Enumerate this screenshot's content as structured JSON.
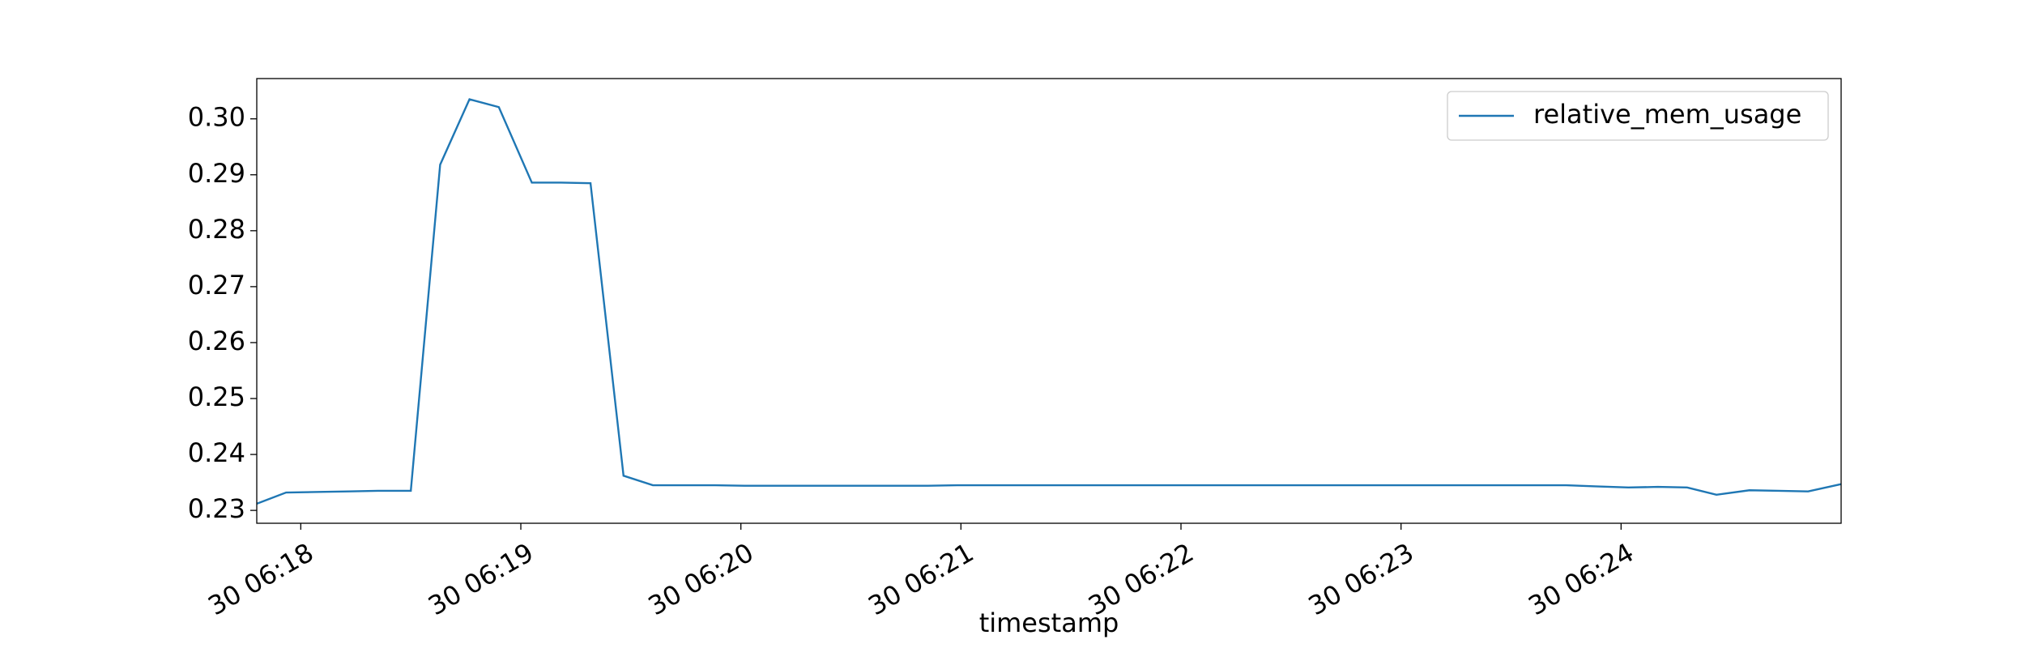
{
  "chart_data": {
    "type": "line",
    "x_label": "timestamp",
    "x": [
      "30 06:17:48",
      "30 06:17:56",
      "30 06:18:05",
      "30 06:18:13",
      "30 06:18:21",
      "30 06:18:30",
      "30 06:18:38",
      "30 06:18:46",
      "30 06:18:54",
      "30 06:19:03",
      "30 06:19:11",
      "30 06:19:19",
      "30 06:19:28",
      "30 06:19:36",
      "30 06:19:44",
      "30 06:19:53",
      "30 06:20:01",
      "30 06:20:09",
      "30 06:20:17",
      "30 06:20:26",
      "30 06:20:34",
      "30 06:20:42",
      "30 06:20:51",
      "30 06:20:59",
      "30 06:21:07",
      "30 06:21:16",
      "30 06:21:24",
      "30 06:21:32",
      "30 06:21:40",
      "30 06:21:49",
      "30 06:21:57",
      "30 06:22:05",
      "30 06:22:14",
      "30 06:22:22",
      "30 06:22:30",
      "30 06:22:39",
      "30 06:22:47",
      "30 06:22:55",
      "30 06:23:03",
      "30 06:23:12",
      "30 06:23:20",
      "30 06:23:28",
      "30 06:23:37",
      "30 06:23:45",
      "30 06:23:53",
      "30 06:24:02",
      "30 06:24:10",
      "30 06:24:18",
      "30 06:24:26",
      "30 06:24:35",
      "30 06:24:43",
      "30 06:24:51",
      "30 06:25:00"
    ],
    "series": [
      {
        "name": "relative_mem_usage",
        "color": "#1f77b4",
        "values": [
          0.2312,
          0.2332,
          0.2333,
          0.2334,
          0.2335,
          0.2335,
          0.2918,
          0.3035,
          0.3021,
          0.2886,
          0.2886,
          0.2885,
          0.2362,
          0.2345,
          0.2345,
          0.2345,
          0.2344,
          0.2344,
          0.2344,
          0.2344,
          0.2344,
          0.2344,
          0.2344,
          0.2345,
          0.2345,
          0.2345,
          0.2345,
          0.2345,
          0.2345,
          0.2345,
          0.2345,
          0.2345,
          0.2345,
          0.2345,
          0.2345,
          0.2345,
          0.2345,
          0.2345,
          0.2345,
          0.2345,
          0.2345,
          0.2345,
          0.2345,
          0.2345,
          0.2343,
          0.2341,
          0.2342,
          0.2341,
          0.2328,
          0.2336,
          0.2335,
          0.2334,
          0.2347
        ]
      }
    ],
    "xlim": [
      "30 06:17:48",
      "30 06:25:00"
    ],
    "xticks": [
      {
        "value": "30 06:18:00",
        "label": "30 06:18"
      },
      {
        "value": "30 06:19:00",
        "label": "30 06:19"
      },
      {
        "value": "30 06:20:00",
        "label": "30 06:20"
      },
      {
        "value": "30 06:21:00",
        "label": "30 06:21"
      },
      {
        "value": "30 06:22:00",
        "label": "30 06:22"
      },
      {
        "value": "30 06:23:00",
        "label": "30 06:23"
      },
      {
        "value": "30 06:24:00",
        "label": "30 06:24"
      }
    ],
    "ylim": [
      0.2277,
      0.3072
    ],
    "yticks": [
      {
        "value": 0.23,
        "label": "0.23"
      },
      {
        "value": 0.24,
        "label": "0.24"
      },
      {
        "value": 0.25,
        "label": "0.25"
      },
      {
        "value": 0.26,
        "label": "0.26"
      },
      {
        "value": 0.27,
        "label": "0.27"
      },
      {
        "value": 0.28,
        "label": "0.28"
      },
      {
        "value": 0.29,
        "label": "0.29"
      },
      {
        "value": 0.3,
        "label": "0.30"
      }
    ],
    "legend": "upper right",
    "grid": false
  }
}
